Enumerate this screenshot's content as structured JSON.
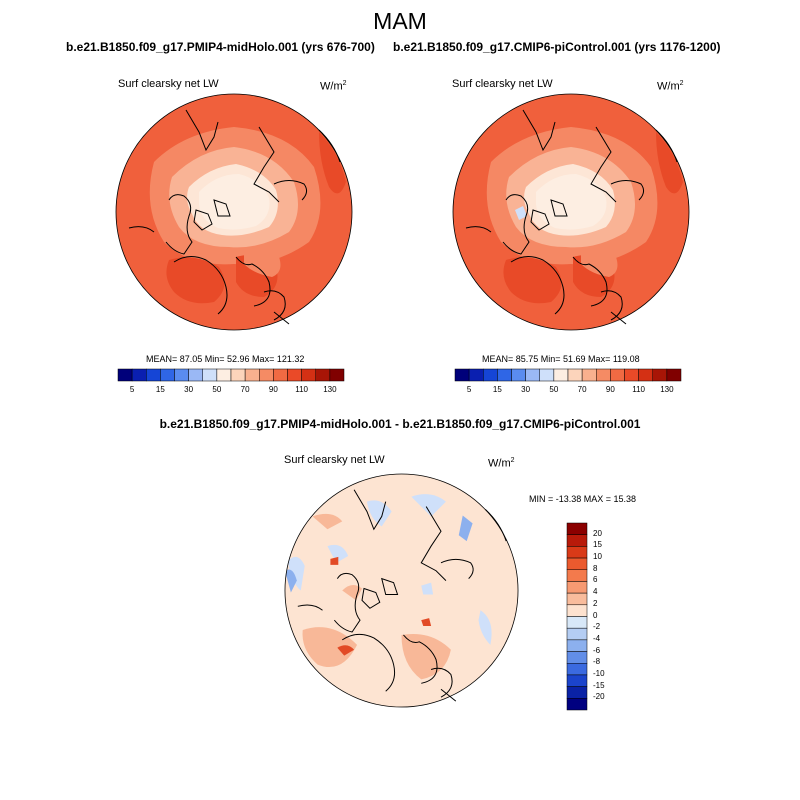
{
  "season": "MAM",
  "panels": [
    {
      "case_title": "b.e21.B1850.f09_g17.PMIP4-midHolo.001 (yrs 676-700)",
      "variable_label": "Surf clearsky net LW",
      "units": "W/m",
      "units_exp": "2",
      "stats": "MEAN=  87.05  Min=  52.96  Max= 121.32"
    },
    {
      "case_title": "b.e21.B1850.f09_g17.CMIP6-piControl.001 (yrs 1176-1200)",
      "variable_label": "Surf clearsky net LW",
      "units": "W/m",
      "units_exp": "2",
      "stats": "MEAN=  85.75  Min=  51.69  Max= 119.08"
    }
  ],
  "colorbar_top": {
    "labels": [
      "5",
      "15",
      "30",
      "50",
      "70",
      "90",
      "110",
      "130"
    ],
    "colors": [
      "#00007a",
      "#0a1fb0",
      "#1545d6",
      "#2f66e6",
      "#5a8cf0",
      "#9ab8f5",
      "#cfe0fa",
      "#fdeee2",
      "#fcd4bb",
      "#f9b08e",
      "#f58b64",
      "#f06a43",
      "#ea4a28",
      "#d43014",
      "#a81506",
      "#800000"
    ]
  },
  "difference": {
    "title": "b.e21.B1850.f09_g17.PMIP4-midHolo.001 - b.e21.B1850.f09_g17.CMIP6-piControl.001",
    "variable_label": "Surf clearsky net LW",
    "units": "W/m",
    "units_exp": "2",
    "minmax": "MIN = -13.38 MAX =  15.38",
    "colorbar_labels": [
      "20",
      "15",
      "10",
      "8",
      "6",
      "4",
      "2",
      "0",
      "-2",
      "-4",
      "-6",
      "-8",
      "-10",
      "-15",
      "-20"
    ],
    "colorbar_colors": [
      "#8b0000",
      "#b81a0a",
      "#d93a18",
      "#eb5a2e",
      "#f37a4c",
      "#f79a72",
      "#f9bc9c",
      "#fde2cf",
      "#d8e8f8",
      "#b4cdf3",
      "#8cb0ee",
      "#628ee8",
      "#3b6ae0",
      "#1b44cc",
      "#0a22a6",
      "#000080"
    ]
  },
  "map_colors": {
    "base_warm": "#f0603c",
    "mid_warm": "#f58864",
    "light_warm": "#f9b395",
    "pale": "#fde6d6",
    "arctic": "#fdeee2",
    "deep_warm": "#e84a28",
    "diff_base": "#fde4d2",
    "diff_light_blue": "#cfe0fa",
    "diff_mid_blue": "#8cb0ee",
    "diff_warm": "#f8b898",
    "diff_red": "#e24a26",
    "coast": "#000000"
  }
}
